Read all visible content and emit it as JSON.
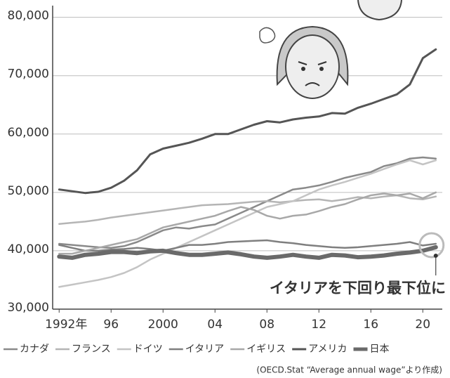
{
  "chart_data": {
    "type": "line",
    "annotation": "イタリアを下回り最下位に",
    "source": "(OECD.Stat “Average annual wage”より作成)",
    "x": [
      1992,
      1993,
      1994,
      1995,
      1996,
      1997,
      1998,
      1999,
      2000,
      2001,
      2002,
      2003,
      2004,
      2005,
      2006,
      2007,
      2008,
      2009,
      2010,
      2011,
      2012,
      2013,
      2014,
      2015,
      2016,
      2017,
      2018,
      2019,
      2020,
      2021
    ],
    "xlim": [
      1991.5,
      2021.5
    ],
    "xticks": [
      {
        "value": 1992,
        "label": "1992年"
      },
      {
        "value": 1996,
        "label": "96"
      },
      2000,
      {
        "value": 2004,
        "label": "04"
      },
      {
        "value": 2008,
        "label": "08"
      },
      {
        "value": 2012,
        "label": "12"
      },
      {
        "value": 2016,
        "label": "16"
      },
      {
        "value": 2020,
        "label": "20"
      }
    ],
    "ylim": [
      30000,
      82000
    ],
    "yticks": [
      {
        "value": 30000,
        "label": "30,000"
      },
      {
        "value": 40000,
        "label": "40,000"
      },
      {
        "value": 50000,
        "label": "50,000"
      },
      {
        "value": 60000,
        "label": "60,000"
      },
      {
        "value": 70000,
        "label": "70,000"
      },
      {
        "value": 80000,
        "label": "80,000"
      }
    ],
    "grid": true,
    "series": [
      {
        "name": "カナダ",
        "color": "#8a8a8a",
        "width": 2.5,
        "values": [
          41200,
          41000,
          40800,
          40600,
          40500,
          40800,
          41500,
          42500,
          43500,
          44000,
          43800,
          44200,
          44500,
          45500,
          46500,
          47500,
          48500,
          49500,
          50500,
          50800,
          51200,
          51800,
          52500,
          53000,
          53500,
          54500,
          55000,
          55800,
          56000,
          55800
        ]
      },
      {
        "name": "フランス",
        "color": "#b5b5b5",
        "width": 2.5,
        "values": [
          44600,
          44800,
          45000,
          45300,
          45700,
          46000,
          46300,
          46600,
          46900,
          47200,
          47500,
          47800,
          47900,
          48000,
          48200,
          48400,
          48500,
          48300,
          48500,
          48700,
          48800,
          48500,
          48800,
          49200,
          49000,
          49300,
          49500,
          49000,
          48800,
          49300
        ]
      },
      {
        "name": "ドイツ",
        "color": "#c4c4c4",
        "width": 2.5,
        "values": [
          33800,
          34200,
          34600,
          35000,
          35500,
          36200,
          37200,
          38500,
          39500,
          40500,
          41500,
          42500,
          43500,
          44500,
          45500,
          46500,
          47500,
          48000,
          48500,
          49500,
          50500,
          51200,
          51800,
          52500,
          53200,
          54000,
          54800,
          55500,
          54800,
          55500
        ]
      },
      {
        "name": "イタリア",
        "color": "#7f7f7f",
        "width": 2.5,
        "values": [
          41000,
          40500,
          40000,
          40000,
          40200,
          40300,
          40500,
          40300,
          40000,
          40500,
          41000,
          41000,
          41200,
          41500,
          41600,
          41700,
          41800,
          41500,
          41300,
          41000,
          40800,
          40600,
          40500,
          40600,
          40800,
          41000,
          41200,
          41500,
          40900,
          41200
        ]
      },
      {
        "name": "イギリス",
        "color": "#a8a8a8",
        "width": 2.5,
        "values": [
          39500,
          39500,
          40000,
          40500,
          41000,
          41500,
          42000,
          43000,
          44000,
          44500,
          45000,
          45500,
          46000,
          46800,
          47500,
          47000,
          46000,
          45500,
          46000,
          46200,
          46800,
          47500,
          48000,
          48800,
          49500,
          49800,
          49500,
          49800,
          49000,
          50000
        ]
      },
      {
        "name": "アメリカ",
        "color": "#555555",
        "width": 3,
        "values": [
          50500,
          50200,
          49900,
          50100,
          50800,
          52000,
          53800,
          56500,
          57500,
          58000,
          58500,
          59200,
          60000,
          60000,
          60800,
          61600,
          62200,
          62000,
          62500,
          62800,
          63000,
          63600,
          63500,
          64500,
          65200,
          66000,
          66800,
          68500,
          73000,
          74500
        ]
      },
      {
        "name": "日本",
        "color": "#6a6a6a",
        "width": 6,
        "values": [
          39000,
          38800,
          39300,
          39500,
          39800,
          39800,
          39600,
          39900,
          40000,
          39600,
          39300,
          39300,
          39500,
          39700,
          39400,
          39000,
          38800,
          39000,
          39300,
          39000,
          38800,
          39300,
          39200,
          38900,
          39000,
          39200,
          39500,
          39700,
          40000,
          40600
        ]
      }
    ]
  }
}
